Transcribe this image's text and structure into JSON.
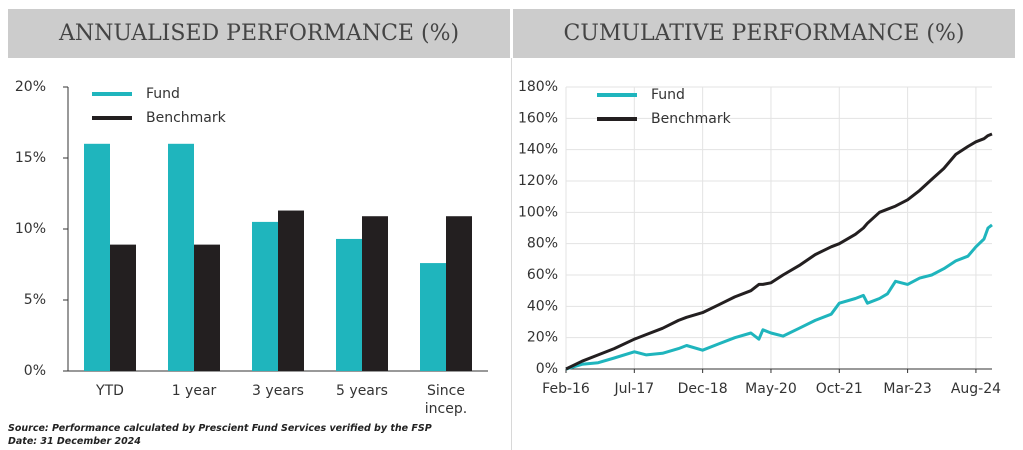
{
  "chart_data": [
    {
      "type": "bar",
      "title": "ANNUALISED PERFORMANCE (%)",
      "categories": [
        "YTD",
        "1 year",
        "3 years",
        "5 years",
        "Since incep."
      ],
      "series": [
        {
          "name": "Fund",
          "color": "#1fb5bd",
          "values": [
            16.0,
            16.0,
            10.5,
            9.3,
            7.6
          ]
        },
        {
          "name": "Benchmark",
          "color": "#231f20",
          "values": [
            8.9,
            8.9,
            11.3,
            10.9,
            10.9
          ]
        }
      ],
      "ylim": [
        0,
        20
      ],
      "yticks": [
        {
          "value": 0,
          "label": "0%"
        },
        {
          "value": 5,
          "label": "5%"
        },
        {
          "value": 10,
          "label": "10%"
        },
        {
          "value": 15,
          "label": "15%"
        },
        {
          "value": 20,
          "label": "20%"
        }
      ],
      "grid": false,
      "legend": "top-left"
    },
    {
      "type": "line",
      "title": "CUMULATIVE PERFORMANCE (%)",
      "x": [
        "Feb-16",
        "Jun-16",
        "Oct-16",
        "Feb-17",
        "Jul-17",
        "Oct-17",
        "Feb-18",
        "Jun-18",
        "Aug-18",
        "Dec-18",
        "Apr-19",
        "Aug-19",
        "Dec-19",
        "Feb-20",
        "Mar-20",
        "May-20",
        "Aug-20",
        "Dec-20",
        "Apr-21",
        "Aug-21",
        "Oct-21",
        "Feb-22",
        "Apr-22",
        "May-22",
        "Aug-22",
        "Oct-22",
        "Dec-22",
        "Mar-23",
        "Jun-23",
        "Sep-23",
        "Dec-23",
        "Mar-24",
        "Jun-24",
        "Aug-24",
        "Oct-24",
        "Nov-24",
        "Dec-24"
      ],
      "series": [
        {
          "name": "Fund",
          "color": "#1fb5bd",
          "values": [
            0,
            3,
            4,
            7,
            11,
            9,
            10,
            13,
            15,
            12,
            16,
            20,
            23,
            19,
            25,
            23,
            21,
            26,
            31,
            35,
            42,
            45,
            47,
            42,
            45,
            48,
            56,
            54,
            58,
            60,
            64,
            69,
            72,
            78,
            83,
            90,
            92
          ]
        },
        {
          "name": "Benchmark",
          "color": "#231f20",
          "values": [
            0,
            5,
            9,
            13,
            19,
            22,
            26,
            31,
            33,
            36,
            41,
            46,
            50,
            54,
            54,
            55,
            60,
            66,
            73,
            78,
            80,
            86,
            90,
            93,
            100,
            102,
            104,
            108,
            114,
            121,
            128,
            137,
            142,
            145,
            147,
            149,
            150
          ]
        }
      ],
      "xlim": [
        "Feb-16",
        "Dec-24"
      ],
      "xticks": [
        "Feb-16",
        "Jul-17",
        "Dec-18",
        "May-20",
        "Oct-21",
        "Mar-23",
        "Aug-24"
      ],
      "ylim": [
        0,
        180
      ],
      "yticks": [
        {
          "value": 0,
          "label": "0%"
        },
        {
          "value": 20,
          "label": "20%"
        },
        {
          "value": 40,
          "label": "40%"
        },
        {
          "value": 60,
          "label": "60%"
        },
        {
          "value": 80,
          "label": "80%"
        },
        {
          "value": 100,
          "label": "100%"
        },
        {
          "value": 120,
          "label": "120%"
        },
        {
          "value": 140,
          "label": "140%"
        },
        {
          "value": 160,
          "label": "160%"
        },
        {
          "value": 180,
          "label": "180%"
        }
      ],
      "grid": true,
      "legend": "top-left"
    }
  ],
  "notes": [
    "Source: Performance calculated by Prescient Fund Services verified by the FSP",
    "Date: 31 December 2024"
  ]
}
